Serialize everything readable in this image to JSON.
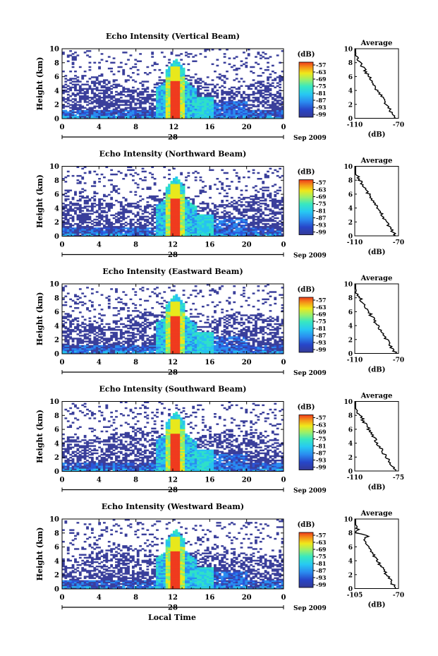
{
  "chart_data": [
    {
      "type": "heatmap",
      "title": "Echo Intensity (Vertical Beam)",
      "ylabel": "Height (km)",
      "yticks": [
        "0",
        "2",
        "4",
        "6",
        "8",
        "10"
      ],
      "ylim": [
        0,
        10
      ],
      "xticks": [
        "0",
        "4",
        "8",
        "12",
        "16",
        "20",
        "0"
      ],
      "xlim": [
        0,
        24
      ],
      "day_label": "28",
      "date_label": "Sep 2009",
      "colorbar": {
        "unit": "(dB)",
        "ticks": [
          "-57",
          "-63",
          "-69",
          "-75",
          "-81",
          "-87",
          "-93",
          "-99"
        ]
      },
      "profile": {
        "title": "Average",
        "xlabel": "(dB)",
        "xticks": [
          "-110",
          "-70"
        ],
        "xlim": [
          -110,
          -70
        ],
        "yticks": [
          "0",
          "2",
          "4",
          "6",
          "8",
          "10"
        ]
      },
      "hour_marks": [
        {
          "label": "12",
          "x": 12.1
        }
      ]
    },
    {
      "type": "heatmap",
      "title": "Echo Intensity (Northward Beam)",
      "ylabel": "Height (km)",
      "yticks": [
        "0",
        "2",
        "4",
        "6",
        "8",
        "10"
      ],
      "ylim": [
        0,
        10
      ],
      "xticks": [
        "0",
        "4",
        "8",
        "12",
        "16",
        "20",
        "0"
      ],
      "xlim": [
        0,
        24
      ],
      "day_label": "28",
      "date_label": "Sep 2009",
      "colorbar": {
        "unit": "(dB)",
        "ticks": [
          "-57",
          "-63",
          "-69",
          "-75",
          "-81",
          "-87",
          "-93",
          "-99"
        ]
      },
      "profile": {
        "title": "Average",
        "xlabel": "(dB)",
        "xticks": [
          "-110",
          "-70"
        ],
        "xlim": [
          -110,
          -70
        ],
        "yticks": [
          "0",
          "2",
          "4",
          "6",
          "8",
          "10"
        ]
      }
    },
    {
      "type": "heatmap",
      "title": "Echo Intensity (Eastward Beam)",
      "ylabel": "Height (km)",
      "yticks": [
        "0",
        "2",
        "4",
        "6",
        "8",
        "10"
      ],
      "ylim": [
        0,
        10
      ],
      "xticks": [
        "0",
        "4",
        "8",
        "12",
        "16",
        "20",
        "0"
      ],
      "xlim": [
        0,
        24
      ],
      "day_label": "28",
      "date_label": "Sep 2009",
      "colorbar": {
        "unit": "(dB)",
        "ticks": [
          "-57",
          "-63",
          "-69",
          "-75",
          "-81",
          "-87",
          "-93",
          "-99"
        ]
      },
      "profile": {
        "title": "Average",
        "xlabel": "(dB)",
        "xticks": [
          "-110",
          "-70"
        ],
        "xlim": [
          -110,
          -70
        ],
        "yticks": [
          "0",
          "2",
          "4",
          "6",
          "8",
          "10"
        ]
      }
    },
    {
      "type": "heatmap",
      "title": "Echo Intensity (Southward Beam)",
      "ylabel": "Height (km)",
      "yticks": [
        "0",
        "2",
        "4",
        "6",
        "8",
        "10"
      ],
      "ylim": [
        0,
        10
      ],
      "xticks": [
        "0",
        "4",
        "8",
        "12",
        "16",
        "20",
        "0"
      ],
      "xlim": [
        0,
        24
      ],
      "day_label": "28",
      "date_label": "Sep 2009",
      "colorbar": {
        "unit": "(dB)",
        "ticks": [
          "-57",
          "-63",
          "-69",
          "-75",
          "-81",
          "-87",
          "-93",
          "-99"
        ]
      },
      "profile": {
        "title": "Average",
        "xlabel": "(dB)",
        "xticks": [
          "-110",
          "-75"
        ],
        "xlim": [
          -110,
          -75
        ],
        "yticks": [
          "0",
          "2",
          "4",
          "6",
          "8",
          "10"
        ]
      }
    },
    {
      "type": "heatmap",
      "title": "Echo Intensity (Westward Beam)",
      "ylabel": "Height (km)",
      "yticks": [
        "0",
        "2",
        "4",
        "6",
        "8",
        "10"
      ],
      "ylim": [
        0,
        10
      ],
      "xticks": [
        "0",
        "4",
        "8",
        "12",
        "16",
        "20",
        "0"
      ],
      "xlim": [
        0,
        24
      ],
      "day_label": "28",
      "date_label": "Sep 2009",
      "colorbar": {
        "unit": "(dB)",
        "ticks": [
          "-57",
          "-63",
          "-69",
          "-75",
          "-81",
          "-87",
          "-93",
          "-99"
        ]
      },
      "profile": {
        "title": "Average",
        "xlabel": "(dB)",
        "xticks": [
          "-105",
          "-70"
        ],
        "xlim": [
          -105,
          -70
        ],
        "yticks": [
          "0",
          "2",
          "4",
          "6",
          "8",
          "10"
        ]
      }
    }
  ],
  "bottom_label": "Local Time",
  "colors": {
    "background": "#ffffff",
    "colormap": [
      "#3a3f9b",
      "#2b55d8",
      "#2a8cf0",
      "#27c2f0",
      "#2fe0c8",
      "#7ef07a",
      "#e8e81c",
      "#f4a11a",
      "#ef3b1e"
    ]
  }
}
